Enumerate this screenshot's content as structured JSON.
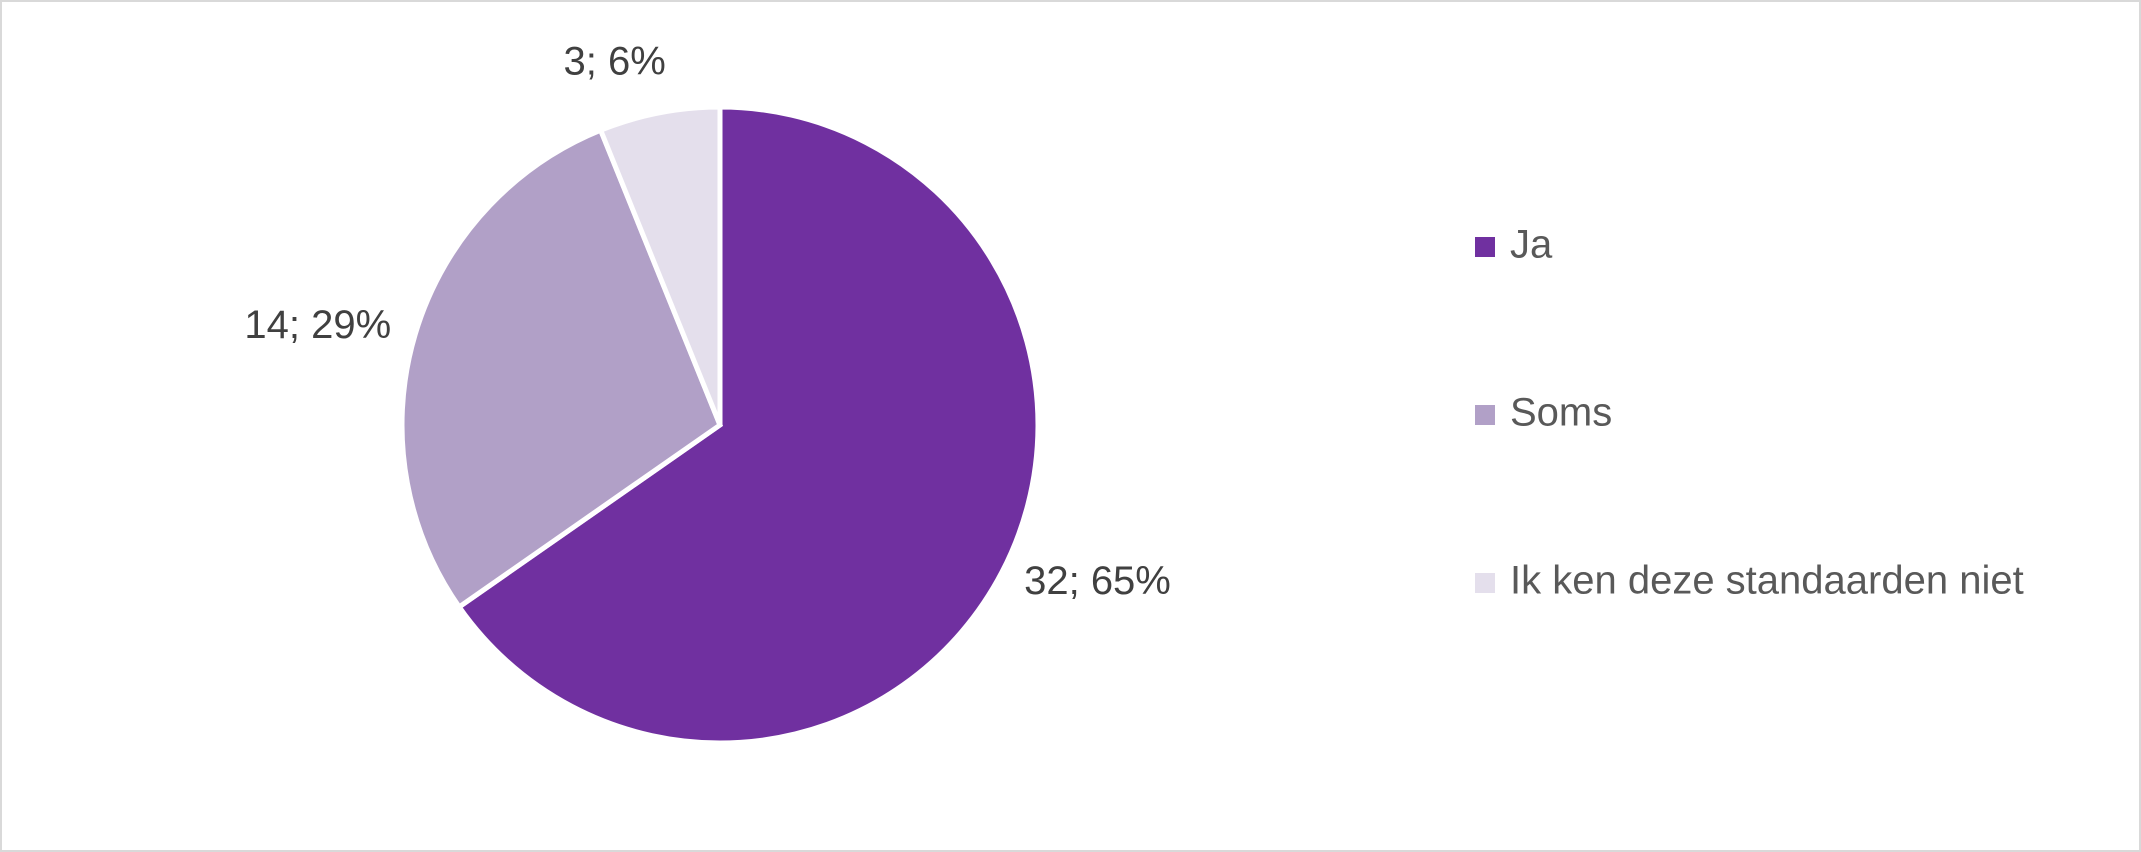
{
  "chart_data": {
    "type": "pie",
    "categories": [
      "Ja",
      "Soms",
      "Ik ken deze standaarden niet"
    ],
    "values": [
      32,
      14,
      3
    ],
    "value_labels": [
      "32; 65%",
      "14; 29%",
      "3; 6%"
    ],
    "colors": [
      "#7030a0",
      "#b1a0c7",
      "#e4dfec"
    ],
    "legend": "right"
  }
}
